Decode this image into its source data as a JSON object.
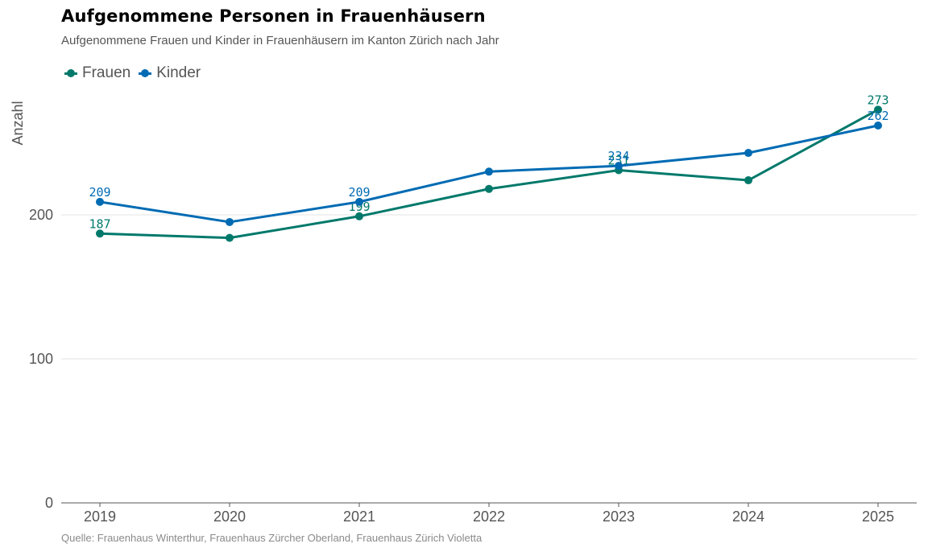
{
  "title": "Aufgenommene Personen in Frauenhäusern",
  "subtitle": "Aufgenommene Frauen und Kinder in Frauenhäusern im Kanton Zürich nach Jahr",
  "source": "Quelle: Frauenhaus Winterthur, Frauenhaus Zürcher Oberland, Frauenhaus Zürich Violetta",
  "chart_data": {
    "type": "line",
    "ylabel": "Anzahl",
    "xlabel": "",
    "x": [
      "2019",
      "2020",
      "2021",
      "2022",
      "2023",
      "2024",
      "2025"
    ],
    "ylim": [
      0,
      300
    ],
    "yticks": [
      0,
      100,
      200
    ],
    "grid": true,
    "legend_position": "top-left",
    "series": [
      {
        "name": "Frauen",
        "color": "#00796b",
        "values": [
          187,
          184,
          199,
          218,
          231,
          224,
          273
        ],
        "labels": [
          "187",
          "",
          "199",
          "",
          "231",
          "",
          "273"
        ]
      },
      {
        "name": "Kinder",
        "color": "#006bb3",
        "values": [
          209,
          195,
          209,
          230,
          234,
          243,
          262
        ],
        "labels": [
          "209",
          "",
          "209",
          "",
          "234",
          "",
          "262"
        ]
      }
    ]
  }
}
